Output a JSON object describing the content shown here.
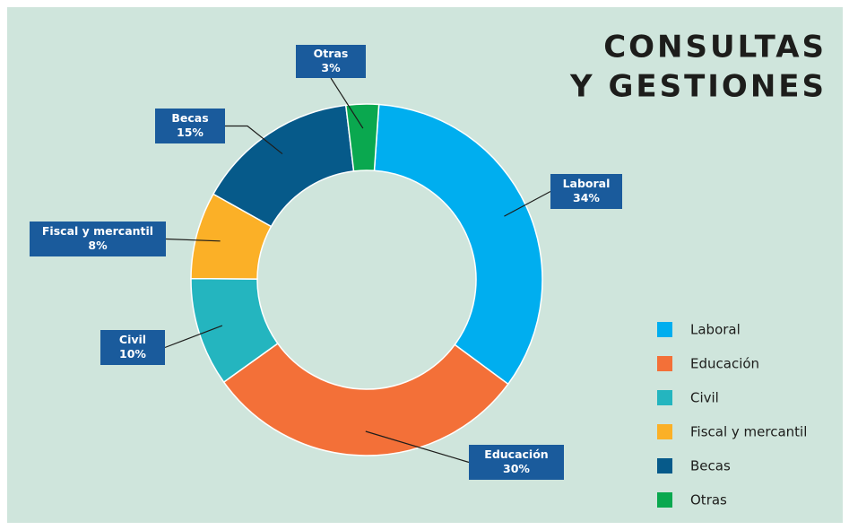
{
  "chart_data": {
    "type": "donut",
    "title_lines": [
      "CONSULTAS",
      "Y GESTIONES"
    ],
    "categories": [
      "Laboral",
      "Educación",
      "Civil",
      "Fiscal y mercantil",
      "Becas",
      "Otras"
    ],
    "values": [
      34,
      30,
      10,
      8,
      15,
      3
    ],
    "value_labels": [
      "34%",
      "30%",
      "10%",
      "8%",
      "15%",
      "3%"
    ],
    "colors": [
      "#00aeef",
      "#f37038",
      "#24b5bf",
      "#fbb027",
      "#065a8a",
      "#0aa84f"
    ],
    "legend": "right"
  }
}
